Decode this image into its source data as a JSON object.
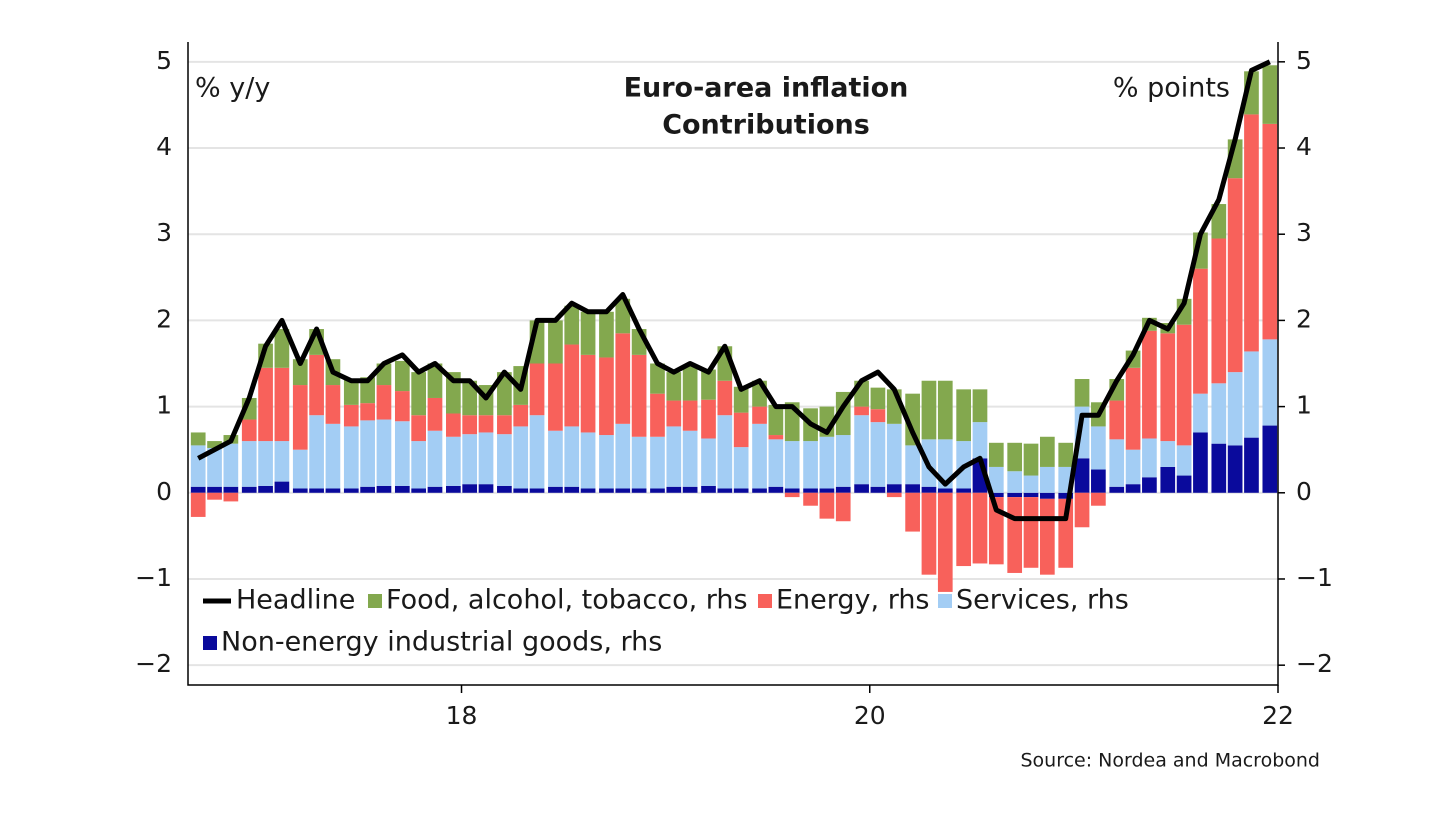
{
  "chart_data": {
    "type": "bar",
    "title": "Euro-area inflation",
    "subtitle": "Contributions",
    "y_label": "% y/y",
    "y2_label": "% points",
    "source": "Source: Nordea and Macrobond",
    "x": [
      16.71,
      16.79,
      16.87,
      16.96,
      17.04,
      17.12,
      17.21,
      17.29,
      17.37,
      17.46,
      17.54,
      17.62,
      17.71,
      17.79,
      17.87,
      17.96,
      18.04,
      18.12,
      18.21,
      18.29,
      18.37,
      18.46,
      18.54,
      18.62,
      18.71,
      18.79,
      18.87,
      18.96,
      19.04,
      19.12,
      19.21,
      19.29,
      19.37,
      19.46,
      19.54,
      19.62,
      19.71,
      19.79,
      19.87,
      19.96,
      20.04,
      20.12,
      20.21,
      20.29,
      20.37,
      20.46,
      20.54,
      20.62,
      20.71,
      20.79,
      20.87,
      20.96,
      21.04,
      21.12,
      21.21,
      21.29,
      21.37,
      21.46,
      21.54,
      21.62,
      21.71,
      21.79,
      21.87,
      21.96
    ],
    "xlim": [
      16.66,
      22
    ],
    "xticks": [
      18,
      20,
      22
    ],
    "ylim": [
      -2.23,
      5.23
    ],
    "yticks": [
      {
        "value": -2,
        "label": "−2"
      },
      {
        "value": -1,
        "label": "−1"
      },
      0,
      1,
      2,
      3,
      4,
      5
    ],
    "y2lim": [
      -2.23,
      5.23
    ],
    "y2ticks": [
      {
        "value": -2,
        "label": "−2"
      },
      {
        "value": -1,
        "label": "−1"
      },
      0,
      1,
      2,
      3,
      4,
      5
    ],
    "grid": true,
    "stacked": true,
    "legend": "lower left",
    "series": [
      {
        "name": "Headline",
        "type": "line",
        "color": "#000000",
        "values": [
          0.4,
          0.5,
          0.6,
          1.1,
          1.7,
          2.0,
          1.5,
          1.9,
          1.4,
          1.3,
          1.3,
          1.5,
          1.6,
          1.4,
          1.5,
          1.3,
          1.3,
          1.1,
          1.4,
          1.2,
          2.0,
          2.0,
          2.2,
          2.1,
          2.1,
          2.3,
          1.9,
          1.5,
          1.4,
          1.5,
          1.4,
          1.7,
          1.2,
          1.3,
          1.0,
          1.0,
          0.8,
          0.7,
          1.0,
          1.3,
          1.4,
          1.2,
          0.7,
          0.3,
          0.1,
          0.3,
          0.4,
          -0.2,
          -0.3,
          -0.3,
          -0.3,
          -0.3,
          0.9,
          0.9,
          1.3,
          1.6,
          2.0,
          1.9,
          2.2,
          3.0,
          3.4,
          4.1,
          4.9,
          5.0
        ]
      },
      {
        "name": "Food, alcohol, tobacco, rhs",
        "axis": "y2",
        "color": "#83a84e",
        "values": [
          0.15,
          0.08,
          0.1,
          0.25,
          0.28,
          0.45,
          0.3,
          0.3,
          0.3,
          0.3,
          0.3,
          0.25,
          0.35,
          0.5,
          0.4,
          0.48,
          0.4,
          0.35,
          0.5,
          0.45,
          0.5,
          0.5,
          0.45,
          0.5,
          0.53,
          0.4,
          0.3,
          0.35,
          0.33,
          0.4,
          0.35,
          0.4,
          0.3,
          0.3,
          0.35,
          0.45,
          0.38,
          0.35,
          0.5,
          0.3,
          0.25,
          0.4,
          0.6,
          0.68,
          0.68,
          0.6,
          0.38,
          0.28,
          0.33,
          0.37,
          0.35,
          0.28,
          0.32,
          0.28,
          0.25,
          0.2,
          0.15,
          0.12,
          0.3,
          0.42,
          0.4,
          0.45,
          0.5,
          0.68
        ]
      },
      {
        "name": "Energy, rhs",
        "axis": "y2",
        "color": "#f8615b",
        "values": [
          -0.28,
          -0.08,
          -0.1,
          0.25,
          0.85,
          0.85,
          0.75,
          0.7,
          0.45,
          0.25,
          0.2,
          0.4,
          0.35,
          0.3,
          0.38,
          0.27,
          0.22,
          0.2,
          0.22,
          0.25,
          0.6,
          0.78,
          0.95,
          0.9,
          0.9,
          1.05,
          0.95,
          0.5,
          0.3,
          0.35,
          0.45,
          0.4,
          0.4,
          0.2,
          0.05,
          -0.05,
          -0.15,
          -0.3,
          -0.33,
          0.1,
          0.15,
          -0.05,
          -0.45,
          -0.95,
          -1.15,
          -0.85,
          -0.82,
          -0.78,
          -0.88,
          -0.82,
          -0.88,
          -0.8,
          -0.4,
          -0.15,
          0.45,
          0.95,
          1.25,
          1.25,
          1.4,
          1.45,
          1.68,
          2.25,
          2.75,
          2.5
        ]
      },
      {
        "name": "Services, rhs",
        "axis": "y2",
        "color": "#a3cdf4",
        "values": [
          0.48,
          0.45,
          0.5,
          0.53,
          0.52,
          0.47,
          0.45,
          0.85,
          0.75,
          0.72,
          0.77,
          0.77,
          0.75,
          0.55,
          0.65,
          0.57,
          0.58,
          0.6,
          0.6,
          0.72,
          0.85,
          0.65,
          0.7,
          0.65,
          0.62,
          0.75,
          0.6,
          0.6,
          0.7,
          0.65,
          0.55,
          0.85,
          0.48,
          0.75,
          0.55,
          0.55,
          0.55,
          0.6,
          0.6,
          0.8,
          0.75,
          0.7,
          0.45,
          0.55,
          0.57,
          0.55,
          0.42,
          0.3,
          0.25,
          0.2,
          0.3,
          0.3,
          0.6,
          0.5,
          0.55,
          0.4,
          0.45,
          0.3,
          0.35,
          0.45,
          0.7,
          0.85,
          1.0,
          1.0
        ]
      },
      {
        "name": "Non-energy industrial goods, rhs",
        "axis": "y2",
        "color": "#0a0a9c",
        "values": [
          0.07,
          0.07,
          0.07,
          0.07,
          0.08,
          0.13,
          0.05,
          0.05,
          0.05,
          0.05,
          0.07,
          0.08,
          0.08,
          0.05,
          0.07,
          0.08,
          0.1,
          0.1,
          0.08,
          0.05,
          0.05,
          0.07,
          0.07,
          0.05,
          0.05,
          0.05,
          0.05,
          0.05,
          0.07,
          0.07,
          0.08,
          0.05,
          0.05,
          0.05,
          0.07,
          0.05,
          0.05,
          0.05,
          0.07,
          0.1,
          0.07,
          0.1,
          0.1,
          0.07,
          0.05,
          0.05,
          0.4,
          -0.05,
          -0.05,
          -0.05,
          -0.07,
          -0.07,
          0.4,
          0.27,
          0.07,
          0.1,
          0.18,
          0.3,
          0.2,
          0.7,
          0.57,
          0.55,
          0.64,
          0.78
        ]
      }
    ]
  }
}
